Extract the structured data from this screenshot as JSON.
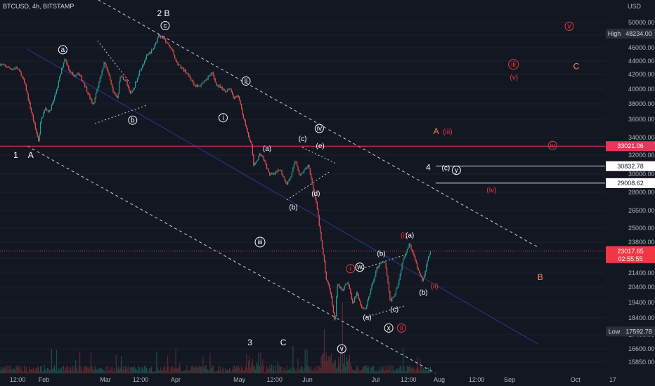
{
  "header": {
    "symbol": "BTCUSD, 4h, BITSTAMP"
  },
  "axis": {
    "currency": "USD"
  },
  "chart_data": {
    "type": "candlestick",
    "title": "BTCUSD, 4h, BITSTAMP",
    "ylabel": "USD",
    "ylim": [
      15000,
      51000
    ],
    "y_ticks": [
      15850,
      16600,
      17400,
      18400,
      19400,
      20400,
      21400,
      22400,
      23800,
      25000,
      26500,
      28000,
      30000,
      32000,
      34000,
      36000,
      38000,
      40000,
      42000,
      44000,
      46000,
      48000,
      50000
    ],
    "x_ticks": [
      "12:00",
      "Feb",
      "Mar",
      "12:00",
      "Apr",
      "May",
      "12:00",
      "Jun",
      "Jul",
      "12:00",
      "Aug",
      "12:00",
      "Sep",
      "Oct",
      "17"
    ],
    "price_path": [
      [
        0,
        43600
      ],
      [
        3,
        42800
      ],
      [
        4,
        43000
      ],
      [
        5,
        42100
      ],
      [
        6,
        40400
      ],
      [
        7,
        37800
      ],
      [
        8,
        35500
      ],
      [
        9,
        33600
      ],
      [
        9.5,
        35800
      ],
      [
        10.5,
        37400
      ],
      [
        11.5,
        37000
      ],
      [
        12.5,
        38600
      ],
      [
        13.5,
        40800
      ],
      [
        14.5,
        43300
      ],
      [
        15,
        44500
      ],
      [
        16,
        42600
      ],
      [
        17,
        41800
      ],
      [
        18,
        42300
      ],
      [
        19.5,
        40600
      ],
      [
        20.5,
        39100
      ],
      [
        21.5,
        37700
      ],
      [
        22,
        39200
      ],
      [
        23.5,
        42600
      ],
      [
        24,
        44000
      ],
      [
        25,
        41800
      ],
      [
        26,
        39500
      ],
      [
        27,
        38700
      ],
      [
        27.5,
        41900
      ],
      [
        29,
        41000
      ],
      [
        30,
        39300
      ],
      [
        30.5,
        39800
      ],
      [
        32,
        42500
      ],
      [
        33.5,
        44600
      ],
      [
        35,
        45700
      ],
      [
        36,
        47300
      ],
      [
        36.3,
        48100
      ],
      [
        37.5,
        47400
      ],
      [
        38.5,
        46500
      ],
      [
        39.5,
        45500
      ],
      [
        40.5,
        43700
      ],
      [
        42.5,
        42400
      ],
      [
        44.5,
        40600
      ],
      [
        45.5,
        40300
      ],
      [
        46.5,
        41000
      ],
      [
        48.5,
        42200
      ],
      [
        49.5,
        40600
      ],
      [
        51.5,
        39700
      ],
      [
        52.5,
        40200
      ],
      [
        53.5,
        38800
      ],
      [
        54.5,
        39000
      ],
      [
        55.5,
        36600
      ],
      [
        56.5,
        34600
      ],
      [
        57.5,
        33100
      ],
      [
        58,
        30800
      ],
      [
        59.5,
        32200
      ],
      [
        60.5,
        31300
      ],
      [
        61.5,
        30000
      ],
      [
        62.5,
        29900
      ],
      [
        64,
        30500
      ],
      [
        65.5,
        28900
      ],
      [
        66.5,
        29800
      ],
      [
        67.5,
        31500
      ],
      [
        68.5,
        29800
      ],
      [
        70.5,
        31000
      ],
      [
        71.5,
        28400
      ],
      [
        72.5,
        26500
      ],
      [
        73.5,
        23500
      ],
      [
        74.5,
        21000
      ],
      [
        75.5,
        20000
      ],
      [
        76.5,
        18000
      ],
      [
        77,
        20700
      ],
      [
        78,
        20200
      ],
      [
        79.5,
        20700
      ],
      [
        80.5,
        19300
      ],
      [
        81.5,
        20100
      ],
      [
        82.5,
        19100
      ],
      [
        83.5,
        19000
      ],
      [
        85,
        20600
      ],
      [
        86,
        21700
      ],
      [
        87,
        22200
      ],
      [
        88,
        22000
      ],
      [
        89,
        19500
      ],
      [
        90,
        19900
      ],
      [
        91,
        20800
      ],
      [
        92,
        22400
      ],
      [
        93.5,
        23700
      ],
      [
        94.5,
        22500
      ],
      [
        95.5,
        21500
      ],
      [
        96.5,
        20800
      ],
      [
        97.5,
        22300
      ],
      [
        98.2,
        23000
      ]
    ],
    "key_levels": [
      {
        "price": 33021.06,
        "label": "33021.06"
      },
      {
        "price": 30832.78,
        "label": "30832.78"
      },
      {
        "price": 29008.62,
        "label": "29008.62"
      }
    ],
    "current_price": {
      "price": 23017.65,
      "label": "23017.65",
      "countdown": "02:55:55"
    },
    "high": {
      "label": "High",
      "price": 48234.0,
      "value_label": "48234.00"
    },
    "low": {
      "label": "Low",
      "price": 17592.78,
      "value_label": "17592.78"
    },
    "waves_white_circled": [
      {
        "t": "a",
        "x": 14.3,
        "y": 45700
      },
      {
        "t": "b",
        "x": 30.2,
        "y": 35900
      },
      {
        "t": "c",
        "x": 37.6,
        "y": 49500
      },
      {
        "t": "ii",
        "x": 56.0,
        "y": 41100
      },
      {
        "t": "i",
        "x": 50.8,
        "y": 36200
      },
      {
        "t": "iii",
        "x": 59.2,
        "y": 23800
      },
      {
        "t": "iv",
        "x": 72.7,
        "y": 35000
      },
      {
        "t": "v",
        "x": 77.8,
        "y": 16600
      },
      {
        "t": "w",
        "x": 81.9,
        "y": 21800
      },
      {
        "t": "x",
        "x": 88.5,
        "y": 17800
      },
      {
        "t": "y",
        "x": 103.9,
        "y": 30400
      }
    ],
    "waves_red_circled": [
      {
        "t": "i",
        "x": 79.8,
        "y": 21700
      },
      {
        "t": "ii",
        "x": 91.4,
        "y": 17800
      },
      {
        "t": "iii",
        "x": 116.9,
        "y": 43500
      },
      {
        "t": "iv",
        "x": 125.8,
        "y": 33100
      },
      {
        "t": "v",
        "x": 129.6,
        "y": 49400
      }
    ],
    "labels_white": [
      {
        "t": "2 B",
        "x": 37.2,
        "y": 51000
      },
      {
        "t": "1",
        "x": 3.6,
        "y": 31700
      },
      {
        "t": "A",
        "x": 7.0,
        "y": 31700
      },
      {
        "t": "(a)",
        "x": 60.8,
        "y": 32500
      },
      {
        "t": "(c)",
        "x": 68.9,
        "y": 33600
      },
      {
        "t": "(e)",
        "x": 72.9,
        "y": 32800
      },
      {
        "t": "(d)",
        "x": 71.9,
        "y": 27700
      },
      {
        "t": "(b)",
        "x": 66.8,
        "y": 26600
      },
      {
        "t": "(b)",
        "x": 86.8,
        "y": 22600
      },
      {
        "t": "(a)",
        "x": 83.6,
        "y": 18300
      },
      {
        "t": "(c)",
        "x": 89.8,
        "y": 18800
      },
      {
        "t": "(a)",
        "x": 93.3,
        "y": 24200
      },
      {
        "t": "(b)",
        "x": 96.4,
        "y": 19900
      },
      {
        "t": "(c)",
        "x": 101.5,
        "y": 30400
      },
      {
        "t": "3",
        "x": 56.9,
        "y": 16800
      },
      {
        "t": "C",
        "x": 64.5,
        "y": 16800
      }
    ],
    "labels_red": [
      {
        "t": "(i)",
        "x": 91.9,
        "y": 24200
      },
      {
        "t": "(ii)",
        "x": 98.9,
        "y": 20300
      },
      {
        "t": "(iii)",
        "x": 101.9,
        "y": 34400
      },
      {
        "t": "(iv)",
        "x": 111.9,
        "y": 28000
      },
      {
        "t": "(v)",
        "x": 117.0,
        "y": 41300
      },
      {
        "t": "4",
        "x": 97.5,
        "y": 30400
      },
      {
        "t": "A",
        "x": 99.3,
        "y": 34400
      }
    ],
    "labels_orange": [
      {
        "t": "C",
        "x": 131.2,
        "y": 42800
      },
      {
        "t": "B",
        "x": 123.0,
        "y": 20900
      }
    ]
  }
}
